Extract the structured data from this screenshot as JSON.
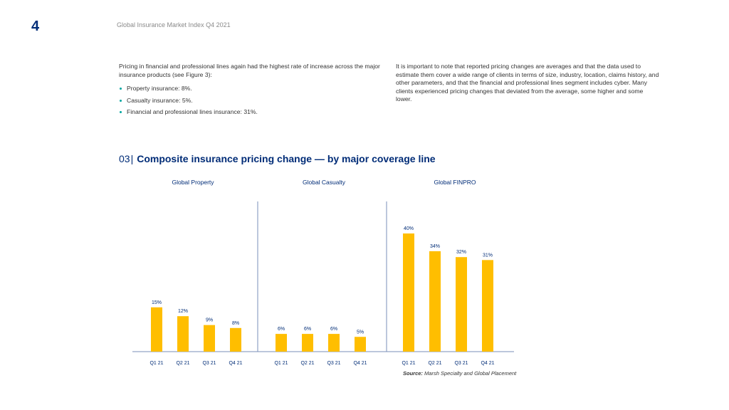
{
  "header": {
    "page_number": "4",
    "running_title": "Global Insurance Market Index Q4 2021"
  },
  "intro": {
    "left_paragraph": "Pricing in financial and professional lines again had the highest rate of increase across the major insurance products (see Figure 3):",
    "bullets": [
      "Property insurance: 8%.",
      "Casualty insurance: 5%.",
      "Financial and professional lines insurance: 31%."
    ],
    "right_paragraph": "It is important to note that reported pricing changes are averages and that the data used to estimate them cover a wide range of clients in terms of size, industry, location, claims history, and other parameters, and that the financial and professional lines segment includes cyber. Many clients experienced pricing changes that deviated from the average, some higher and some lower."
  },
  "figure": {
    "number": "03",
    "separator": "|",
    "title": "Composite insurance pricing change — by major coverage line"
  },
  "source": {
    "label": "Source:",
    "text": "Marsh Specialty and Global Placement"
  },
  "colors": {
    "bar": "#ffbe00",
    "accent": "#002c77",
    "bullet": "#00a6a0"
  },
  "chart_data": {
    "type": "bar",
    "title": "Composite insurance pricing change — by major coverage line",
    "ylim": [
      0,
      45
    ],
    "grid": false,
    "panels": [
      {
        "name": "Global Property",
        "categories": [
          "Q1 21",
          "Q2 21",
          "Q3 21",
          "Q4 21"
        ],
        "values": [
          15,
          12,
          9,
          8
        ],
        "labels": [
          "15%",
          "12%",
          "9%",
          "8%"
        ]
      },
      {
        "name": "Global Casualty",
        "categories": [
          "Q1 21",
          "Q2 21",
          "Q3 21",
          "Q4 21"
        ],
        "values": [
          6,
          6,
          6,
          5
        ],
        "labels": [
          "6%",
          "6%",
          "6%",
          "5%"
        ]
      },
      {
        "name": "Global FINPRO",
        "categories": [
          "Q1 21",
          "Q2 21",
          "Q3 21",
          "Q4 21"
        ],
        "values": [
          40,
          34,
          32,
          31
        ],
        "labels": [
          "40%",
          "34%",
          "32%",
          "31%"
        ]
      }
    ]
  }
}
